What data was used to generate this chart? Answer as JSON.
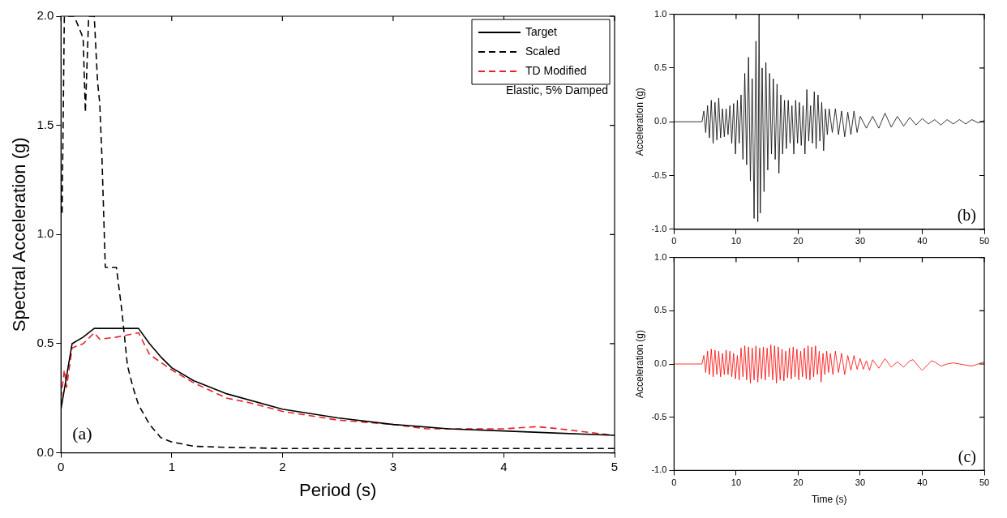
{
  "chart_data": [
    {
      "type": "line",
      "xlabel": "Period (s)",
      "ylabel": "Spectral Acceleration (g)",
      "xlim": [
        0,
        5
      ],
      "ylim": [
        0,
        2
      ],
      "xticks": [
        0,
        1,
        2,
        3,
        4,
        5
      ],
      "yticks": [
        {
          "value": 0,
          "label": "0.0"
        },
        0.5,
        {
          "value": 1,
          "label": "1.0"
        },
        1.5,
        {
          "value": 2,
          "label": "2.0"
        }
      ],
      "legend": "top right",
      "annotations": [
        "Elastic, 5% Damped",
        "(a)"
      ],
      "series": [
        {
          "name": "Target",
          "color": "#000000",
          "line_style": "solid",
          "x": [
            0,
            0.1,
            0.2,
            0.3,
            0.7,
            0.8,
            0.9,
            1.0,
            1.2,
            1.5,
            2,
            2.5,
            3,
            3.5,
            4,
            4.5,
            5
          ],
          "values": [
            0.2,
            0.5,
            0.53,
            0.57,
            0.57,
            0.5,
            0.44,
            0.39,
            0.33,
            0.27,
            0.2,
            0.16,
            0.13,
            0.11,
            0.1,
            0.09,
            0.08
          ]
        },
        {
          "name": "Scaled",
          "color": "#000000",
          "line_style": "dashed",
          "x": [
            0.01,
            0.03,
            0.08,
            0.12,
            0.2,
            0.22,
            0.25,
            0.3,
            0.33,
            0.35,
            0.37,
            0.4,
            0.5,
            0.55,
            0.6,
            0.65,
            0.7,
            0.8,
            0.9,
            1.0,
            1.2,
            1.5,
            2,
            3,
            4,
            5
          ],
          "values": [
            1.1,
            2.0,
            2.0,
            2.0,
            1.9,
            1.56,
            2.0,
            2.0,
            1.7,
            1.6,
            1.35,
            0.85,
            0.85,
            0.65,
            0.4,
            0.3,
            0.22,
            0.13,
            0.07,
            0.05,
            0.03,
            0.025,
            0.02,
            0.02,
            0.02,
            0.02
          ]
        },
        {
          "name": "TD Modified",
          "color": "#e8202a",
          "line_style": "dashed",
          "x": [
            0,
            0.03,
            0.05,
            0.1,
            0.2,
            0.3,
            0.35,
            0.5,
            0.7,
            0.8,
            1,
            1.2,
            1.5,
            1.7,
            2,
            2.5,
            3,
            3.3,
            3.5,
            4,
            4.3,
            4.5,
            5
          ],
          "values": [
            0.25,
            0.38,
            0.3,
            0.48,
            0.5,
            0.55,
            0.52,
            0.53,
            0.55,
            0.45,
            0.38,
            0.32,
            0.25,
            0.23,
            0.19,
            0.15,
            0.13,
            0.11,
            0.11,
            0.11,
            0.12,
            0.11,
            0.08
          ]
        }
      ]
    },
    {
      "type": "line",
      "ylabel": "Acceleration (g)",
      "xlim": [
        0,
        50
      ],
      "ylim": [
        -1,
        1
      ],
      "xticks": [
        0,
        10,
        20,
        30,
        40,
        50
      ],
      "yticks": [
        {
          "value": -1,
          "label": "-1.0"
        },
        -0.5,
        {
          "value": 0,
          "label": "0.0"
        },
        0.5,
        {
          "value": 1,
          "label": "1.0"
        }
      ],
      "annotations": [
        "(b)"
      ],
      "series": [
        {
          "color": "#000000",
          "x": [
            0,
            4.5,
            4.8,
            5.1,
            5.4,
            5.7,
            6.0,
            6.3,
            6.6,
            6.9,
            7.2,
            7.5,
            7.8,
            8.1,
            8.4,
            8.7,
            9.0,
            9.3,
            9.6,
            9.9,
            10.2,
            10.5,
            10.8,
            11.1,
            11.4,
            11.7,
            12.0,
            12.3,
            12.6,
            12.9,
            13.2,
            13.5,
            13.7,
            13.9,
            14.2,
            14.5,
            14.8,
            15.1,
            15.4,
            15.7,
            16.0,
            16.3,
            16.6,
            16.9,
            17.2,
            17.5,
            17.8,
            18.1,
            18.4,
            18.7,
            19.0,
            19.3,
            19.6,
            19.9,
            20.2,
            20.5,
            20.8,
            21.1,
            21.4,
            21.7,
            22.0,
            22.3,
            22.6,
            22.9,
            23.2,
            23.5,
            23.8,
            24.1,
            24.4,
            24.7,
            25.0,
            25.5,
            26.0,
            26.5,
            27.0,
            27.5,
            28.0,
            28.5,
            29.0,
            29.5,
            30,
            31,
            32,
            33,
            34,
            35,
            36,
            37,
            38,
            39,
            40,
            41,
            42,
            43,
            44,
            45,
            46,
            47,
            48,
            49,
            50
          ],
          "values": [
            0,
            0,
            0.1,
            -0.1,
            0.15,
            -0.15,
            0.2,
            -0.2,
            0.18,
            -0.17,
            0.22,
            -0.15,
            0.12,
            -0.14,
            0.12,
            -0.12,
            0.15,
            -0.2,
            0.17,
            -0.3,
            0.2,
            -0.2,
            0.25,
            -0.35,
            0.45,
            -0.4,
            0.6,
            -0.55,
            0.4,
            -0.9,
            0.75,
            -0.93,
            1.0,
            -0.85,
            0.5,
            -0.65,
            0.55,
            -0.45,
            0.45,
            -0.3,
            0.4,
            -0.35,
            0.35,
            -0.48,
            0.25,
            -0.3,
            0.2,
            -0.25,
            0.2,
            -0.2,
            0.15,
            -0.3,
            0.2,
            -0.2,
            0.18,
            -0.22,
            0.15,
            -0.3,
            0.3,
            -0.18,
            0.15,
            -0.2,
            0.28,
            -0.25,
            0.25,
            -0.18,
            0.18,
            -0.27,
            0.12,
            -0.12,
            0.12,
            -0.1,
            0.12,
            -0.12,
            0.1,
            -0.14,
            0.09,
            -0.12,
            0.1,
            -0.1,
            0.05,
            -0.06,
            0.05,
            -0.06,
            0.08,
            -0.05,
            0.05,
            -0.04,
            0.04,
            -0.03,
            0.03,
            -0.02,
            0.02,
            -0.03,
            0.02,
            -0.02,
            0.02,
            -0.02,
            0.02,
            -0.01,
            0.01
          ]
        }
      ]
    },
    {
      "type": "line",
      "xlabel": "Time (s)",
      "ylabel": "Acceleration (g)",
      "xlim": [
        0,
        50
      ],
      "ylim": [
        -1,
        1
      ],
      "xticks": [
        0,
        10,
        20,
        30,
        40,
        50
      ],
      "yticks": [
        {
          "value": -1,
          "label": "-1.0"
        },
        -0.5,
        {
          "value": 0,
          "label": "0.0"
        },
        0.5,
        {
          "value": 1,
          "label": "1.0"
        }
      ],
      "annotations": [
        "(c)"
      ],
      "series": [
        {
          "color": "#ff0000",
          "x": [
            0,
            4.5,
            4.8,
            5.1,
            5.4,
            5.7,
            6.0,
            6.3,
            6.6,
            6.9,
            7.2,
            7.5,
            7.8,
            8.1,
            8.4,
            8.7,
            9.0,
            9.3,
            9.6,
            9.9,
            10.2,
            10.5,
            10.8,
            11.1,
            11.4,
            11.7,
            12.0,
            12.3,
            12.6,
            12.9,
            13.2,
            13.5,
            13.8,
            14.1,
            14.4,
            14.7,
            15.0,
            15.3,
            15.6,
            15.9,
            16.2,
            16.5,
            16.8,
            17.1,
            17.4,
            17.7,
            18.0,
            18.3,
            18.6,
            18.9,
            19.2,
            19.5,
            19.8,
            20.1,
            20.4,
            20.7,
            21.0,
            21.3,
            21.6,
            21.9,
            22.2,
            22.5,
            22.8,
            23.1,
            23.4,
            23.7,
            24.0,
            24.3,
            24.6,
            24.9,
            25.2,
            25.6,
            26,
            26.5,
            27,
            27.5,
            28,
            28.5,
            29,
            29.5,
            30,
            30.5,
            31,
            31.5,
            32,
            33,
            34,
            35,
            36,
            37,
            38,
            38.5,
            39.5,
            40,
            40.5,
            41.5,
            42,
            43,
            44,
            45,
            46,
            47,
            48,
            49,
            50
          ],
          "values": [
            0,
            0,
            0.08,
            -0.08,
            0.12,
            -0.1,
            0.14,
            -0.12,
            0.13,
            -0.1,
            0.12,
            -0.12,
            0.1,
            -0.1,
            0.13,
            -0.1,
            0.12,
            -0.12,
            0.1,
            -0.14,
            0.08,
            -0.15,
            0.15,
            -0.12,
            0.17,
            -0.15,
            0.16,
            -0.18,
            0.15,
            -0.15,
            0.17,
            -0.17,
            0.15,
            -0.14,
            0.16,
            -0.15,
            0.15,
            -0.12,
            0.18,
            -0.15,
            0.17,
            -0.18,
            0.16,
            -0.15,
            0.14,
            -0.16,
            0.12,
            -0.13,
            0.15,
            -0.14,
            0.16,
            -0.12,
            0.14,
            -0.15,
            0.12,
            -0.12,
            0.15,
            -0.14,
            0.17,
            -0.15,
            0.16,
            -0.12,
            0.17,
            -0.1,
            0.12,
            -0.17,
            0.1,
            -0.1,
            0.12,
            -0.08,
            0.1,
            -0.1,
            0.12,
            -0.08,
            0.1,
            -0.1,
            0.08,
            -0.06,
            0.08,
            -0.05,
            0.05,
            -0.05,
            0.03,
            -0.06,
            0.04,
            -0.04,
            0.05,
            -0.03,
            0.02,
            -0.03,
            0.03,
            0.04,
            -0.03,
            -0.06,
            -0.03,
            0.03,
            0.02,
            -0.02,
            0,
            0.01,
            0,
            -0.01,
            -0.02,
            0,
            0.02
          ]
        }
      ]
    }
  ]
}
